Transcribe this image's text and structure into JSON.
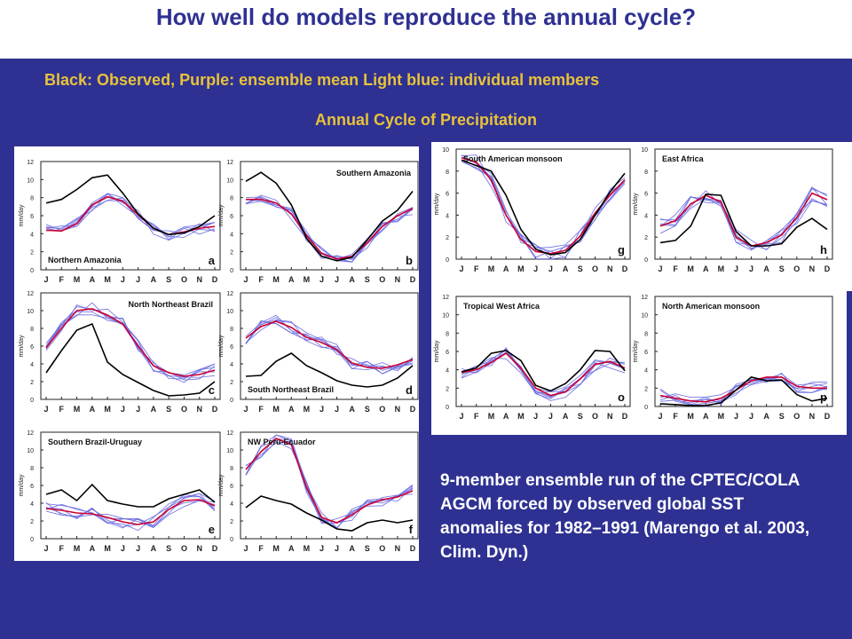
{
  "title": "How well do models reproduce the annual cycle?",
  "legend_text": "Black: Observed, Purple: ensemble mean Light blue: individual members",
  "figure_title": "Annual Cycle of Precipitation",
  "note": "9-member ensemble run of the CPTEC/COLA AGCM forced by observed global SST anomalies for 1982–1991 (Marengo et al. 2003, Clim. Dyn.)",
  "colors": {
    "background_band": "#2e3192",
    "title": "#2e3192",
    "subtitle": "#e8c23a",
    "observed": "#000000",
    "ensemble_mean": "#cc0033",
    "members": "#6a6ae0"
  },
  "chart_data": [
    {
      "type": "line",
      "panel": "a",
      "label": "Northern Amazonia",
      "ylabel": "mm/day",
      "ylim": [
        0,
        12
      ],
      "categories": [
        "J",
        "F",
        "M",
        "A",
        "M",
        "J",
        "J",
        "A",
        "S",
        "O",
        "N",
        "D"
      ],
      "series": [
        {
          "role": "observed",
          "values": [
            7.4,
            7.8,
            8.9,
            10.2,
            10.5,
            8.5,
            6.2,
            4.6,
            3.9,
            4.1,
            4.8,
            6.0
          ]
        },
        {
          "role": "ensemble_mean",
          "values": [
            4.4,
            4.3,
            5.1,
            7.2,
            8.1,
            7.6,
            6.1,
            4.6,
            3.9,
            4.2,
            4.6,
            4.8
          ]
        }
      ]
    },
    {
      "type": "line",
      "panel": "b",
      "label": "Southern Amazonia",
      "ylabel": "mm/day",
      "ylim": [
        0,
        12
      ],
      "categories": [
        "J",
        "F",
        "M",
        "A",
        "M",
        "J",
        "J",
        "A",
        "S",
        "O",
        "N",
        "D"
      ],
      "series": [
        {
          "role": "observed",
          "values": [
            9.8,
            10.8,
            9.6,
            7.2,
            3.5,
            1.5,
            1.0,
            1.4,
            3.3,
            5.4,
            6.6,
            8.7
          ]
        },
        {
          "role": "ensemble_mean",
          "values": [
            7.8,
            7.8,
            7.4,
            6.2,
            3.8,
            1.8,
            1.2,
            1.5,
            3.0,
            4.8,
            6.0,
            6.8
          ]
        }
      ]
    },
    {
      "type": "line",
      "panel": "c",
      "label": "North Northeast Brazil",
      "ylabel": "mm/day",
      "ylim": [
        0,
        12
      ],
      "categories": [
        "J",
        "F",
        "M",
        "A",
        "M",
        "J",
        "J",
        "A",
        "S",
        "O",
        "N",
        "D"
      ],
      "series": [
        {
          "role": "observed",
          "values": [
            3.0,
            5.5,
            7.8,
            8.5,
            4.2,
            2.8,
            1.9,
            1.0,
            0.4,
            0.5,
            0.7,
            2.0
          ]
        },
        {
          "role": "ensemble_mean",
          "values": [
            5.8,
            8.0,
            10.0,
            10.2,
            9.5,
            8.5,
            6.0,
            3.8,
            3.0,
            2.6,
            2.8,
            3.3
          ]
        }
      ]
    },
    {
      "type": "line",
      "panel": "d",
      "label": "South Northeast Brazil",
      "ylabel": "mm/day",
      "ylim": [
        0,
        12
      ],
      "categories": [
        "J",
        "F",
        "M",
        "A",
        "M",
        "J",
        "J",
        "A",
        "S",
        "O",
        "N",
        "D"
      ],
      "series": [
        {
          "role": "observed",
          "values": [
            2.6,
            2.7,
            4.3,
            5.2,
            3.8,
            3.0,
            2.1,
            1.6,
            1.4,
            1.6,
            2.4,
            3.8
          ]
        },
        {
          "role": "ensemble_mean",
          "values": [
            6.9,
            8.2,
            8.8,
            8.1,
            7.0,
            6.4,
            5.6,
            4.1,
            3.6,
            3.5,
            3.9,
            4.5
          ]
        }
      ]
    },
    {
      "type": "line",
      "panel": "e",
      "label": "Southern Brazil-Uruguay",
      "ylabel": "mm/day",
      "ylim": [
        0,
        12
      ],
      "categories": [
        "J",
        "F",
        "M",
        "A",
        "M",
        "J",
        "J",
        "A",
        "S",
        "O",
        "N",
        "D"
      ],
      "series": [
        {
          "role": "observed",
          "values": [
            5.0,
            5.5,
            4.3,
            6.1,
            4.3,
            3.9,
            3.6,
            3.6,
            4.5,
            5.0,
            5.5,
            4.1
          ]
        },
        {
          "role": "ensemble_mean",
          "values": [
            3.4,
            3.2,
            2.9,
            2.8,
            2.4,
            1.9,
            1.6,
            1.9,
            3.3,
            4.3,
            4.4,
            3.7
          ]
        }
      ]
    },
    {
      "type": "line",
      "panel": "f",
      "label": "NW Peru-Ecuador",
      "ylabel": "mm/day",
      "ylim": [
        0,
        12
      ],
      "categories": [
        "J",
        "F",
        "M",
        "A",
        "M",
        "J",
        "J",
        "A",
        "S",
        "O",
        "N",
        "D"
      ],
      "series": [
        {
          "role": "observed",
          "values": [
            3.5,
            4.8,
            4.3,
            3.9,
            2.9,
            2.1,
            1.1,
            0.9,
            1.8,
            2.1,
            1.8,
            2.1
          ]
        },
        {
          "role": "ensemble_mean",
          "values": [
            7.8,
            9.8,
            11.3,
            10.6,
            5.8,
            2.4,
            1.8,
            2.7,
            3.8,
            4.4,
            4.7,
            5.4
          ]
        }
      ]
    },
    {
      "type": "line",
      "panel": "g",
      "label": "South American monsoon",
      "ylabel": "mm/day",
      "ylim": [
        0,
        10
      ],
      "categories": [
        "J",
        "F",
        "M",
        "A",
        "M",
        "J",
        "J",
        "A",
        "S",
        "O",
        "N",
        "D"
      ],
      "series": [
        {
          "role": "observed",
          "values": [
            9.0,
            8.5,
            8.0,
            5.8,
            2.7,
            0.9,
            0.4,
            0.6,
            1.8,
            4.0,
            6.1,
            7.8
          ]
        },
        {
          "role": "ensemble_mean",
          "values": [
            9.2,
            8.8,
            7.2,
            4.0,
            1.8,
            0.7,
            0.5,
            0.8,
            2.1,
            4.2,
            5.8,
            7.2
          ]
        }
      ]
    },
    {
      "type": "line",
      "panel": "h",
      "label": "East Africa",
      "ylabel": "mm/day",
      "ylim": [
        0,
        10
      ],
      "categories": [
        "J",
        "F",
        "M",
        "A",
        "M",
        "J",
        "J",
        "A",
        "S",
        "O",
        "N",
        "D"
      ],
      "series": [
        {
          "role": "observed",
          "values": [
            1.5,
            1.7,
            3.0,
            5.9,
            5.8,
            2.5,
            1.2,
            1.2,
            1.4,
            2.9,
            3.7,
            2.7
          ]
        },
        {
          "role": "ensemble_mean",
          "values": [
            3.0,
            3.5,
            5.0,
            5.8,
            5.2,
            2.0,
            1.2,
            1.5,
            2.2,
            3.8,
            6.0,
            5.4
          ]
        }
      ]
    },
    {
      "type": "line",
      "panel": "o",
      "label": "Tropical West Africa",
      "ylabel": "mm/day",
      "ylim": [
        0,
        12
      ],
      "categories": [
        "J",
        "F",
        "M",
        "A",
        "M",
        "J",
        "J",
        "A",
        "S",
        "O",
        "N",
        "D"
      ],
      "series": [
        {
          "role": "observed",
          "values": [
            3.8,
            4.2,
            5.8,
            6.1,
            5.0,
            2.3,
            1.7,
            2.5,
            4.0,
            6.1,
            6.0,
            3.9
          ]
        },
        {
          "role": "ensemble_mean",
          "values": [
            3.7,
            4.0,
            4.8,
            5.8,
            4.2,
            2.0,
            1.2,
            1.6,
            3.0,
            4.6,
            4.9,
            4.2
          ]
        }
      ]
    },
    {
      "type": "line",
      "panel": "p",
      "label": "North American monsoon",
      "ylabel": "mm/day",
      "ylim": [
        0,
        12
      ],
      "categories": [
        "J",
        "F",
        "M",
        "A",
        "M",
        "J",
        "J",
        "A",
        "S",
        "O",
        "N",
        "D"
      ],
      "series": [
        {
          "role": "observed",
          "values": [
            0.3,
            0.2,
            0.1,
            0.1,
            0.4,
            1.8,
            3.2,
            2.8,
            2.9,
            1.3,
            0.6,
            0.9
          ]
        },
        {
          "role": "ensemble_mean",
          "values": [
            1.2,
            0.9,
            0.6,
            0.5,
            0.9,
            1.8,
            2.8,
            3.2,
            3.2,
            2.2,
            2.0,
            2.0
          ]
        }
      ]
    }
  ]
}
